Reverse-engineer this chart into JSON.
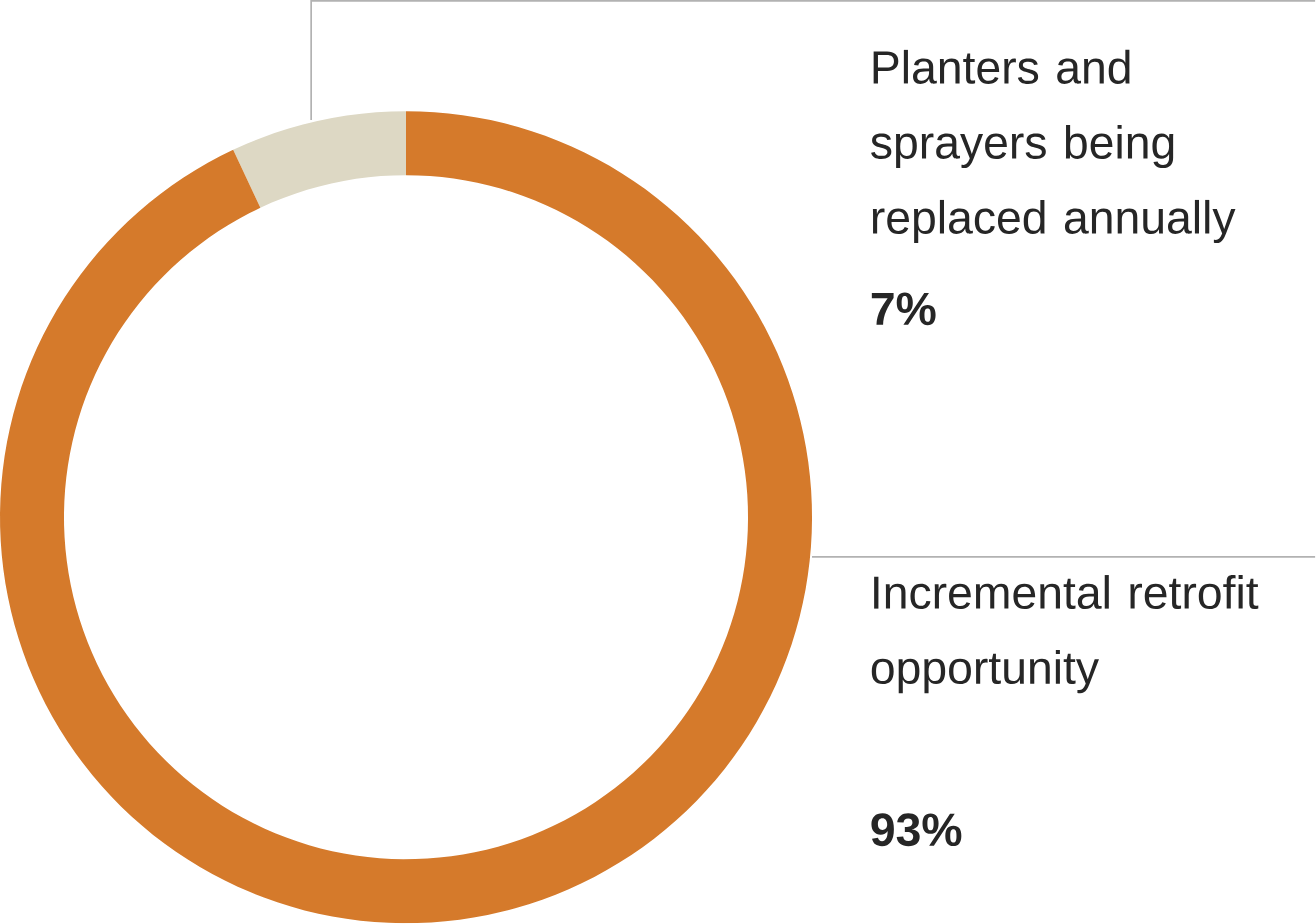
{
  "chart_data": {
    "type": "donut",
    "categories": [
      "Planters and sprayers being replaced annually",
      "Incremental retrofit opportunity"
    ],
    "values": [
      7,
      93
    ],
    "colors": [
      "#ddd8c4",
      "#d57a2b"
    ],
    "value_labels": [
      "7%",
      "93%"
    ]
  }
}
